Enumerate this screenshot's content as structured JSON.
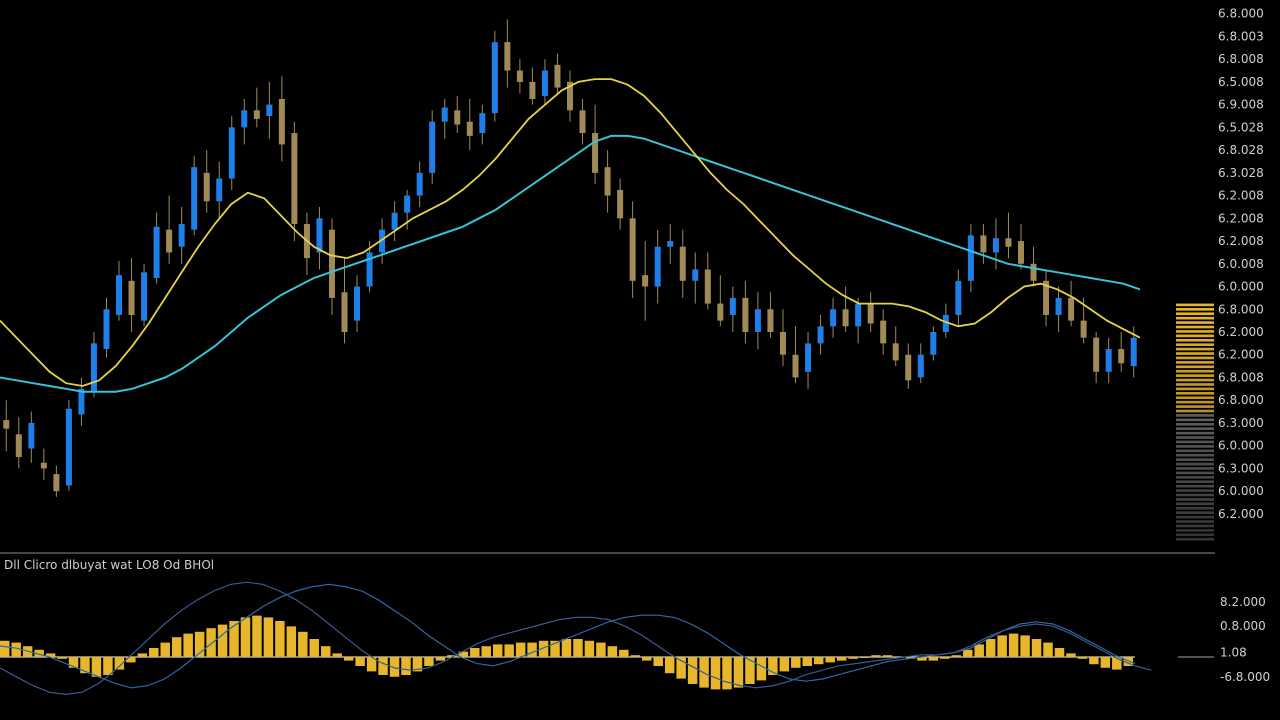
{
  "subpanel_label": "Dll Clicro dlbuyat wat LO8 Od BHOl",
  "colors": {
    "background": "#000000",
    "bull_candle": "#1e7fe8",
    "bear_candle": "#a08a58",
    "ma_fast": "#e6d14a",
    "ma_slow": "#37c3d8",
    "histogram": "#e8b62a",
    "signal_line": "#2a6aa8",
    "macd_line": "#3a5a90",
    "axis_text": "#d0d0d0",
    "separator": "#8a9aa8"
  },
  "chart_data": [
    {
      "type": "candlestick",
      "title": "",
      "ylim": [
        0,
        19
      ],
      "price_ticks": [
        "6.8.000",
        "6.8.003",
        "6.8.008",
        "6.5.008",
        "6.9.008",
        "6.5.028",
        "6.8.028",
        "6.3.028",
        "6.2.008",
        "6.2.008",
        "6.2.008",
        "6.0.008",
        "6.0.000",
        "6.8.000",
        "6.2.000",
        "6.2.000",
        "6.8.008",
        "6.8.000",
        "6.3.000",
        "6.0.000",
        "6.3.000",
        "6.0.000",
        "6.2.000"
      ],
      "bands": {
        "price_tick_values": [
          18.8,
          18.0,
          17.2,
          16.4,
          15.6,
          14.8,
          14.0,
          13.2,
          12.4,
          11.6,
          10.8,
          10.0,
          9.2,
          8.4,
          7.6,
          6.8,
          6.0,
          5.2,
          4.4,
          3.6,
          2.8,
          2.0,
          1.2
        ]
      },
      "candles": [
        {
          "o": 4.5,
          "h": 5.2,
          "l": 3.4,
          "c": 4.2
        },
        {
          "o": 4.0,
          "h": 4.6,
          "l": 2.8,
          "c": 3.2
        },
        {
          "o": 3.5,
          "h": 4.8,
          "l": 3.0,
          "c": 4.4
        },
        {
          "o": 3.0,
          "h": 3.5,
          "l": 2.4,
          "c": 2.8
        },
        {
          "o": 2.6,
          "h": 2.9,
          "l": 1.8,
          "c": 2.0
        },
        {
          "o": 2.2,
          "h": 5.2,
          "l": 2.0,
          "c": 4.9
        },
        {
          "o": 4.7,
          "h": 6.0,
          "l": 4.3,
          "c": 5.6
        },
        {
          "o": 5.5,
          "h": 7.6,
          "l": 5.3,
          "c": 7.2
        },
        {
          "o": 7.0,
          "h": 8.8,
          "l": 6.7,
          "c": 8.4
        },
        {
          "o": 8.2,
          "h": 10.1,
          "l": 8.0,
          "c": 9.6
        },
        {
          "o": 9.4,
          "h": 10.2,
          "l": 7.6,
          "c": 8.2
        },
        {
          "o": 8.0,
          "h": 10.0,
          "l": 7.8,
          "c": 9.7
        },
        {
          "o": 9.5,
          "h": 11.8,
          "l": 9.3,
          "c": 11.3
        },
        {
          "o": 11.2,
          "h": 12.4,
          "l": 10.0,
          "c": 10.4
        },
        {
          "o": 10.6,
          "h": 12.0,
          "l": 10.0,
          "c": 11.4
        },
        {
          "o": 11.2,
          "h": 13.8,
          "l": 11.0,
          "c": 13.4
        },
        {
          "o": 13.2,
          "h": 14.0,
          "l": 11.8,
          "c": 12.2
        },
        {
          "o": 12.2,
          "h": 13.6,
          "l": 11.6,
          "c": 13.0
        },
        {
          "o": 13.0,
          "h": 15.2,
          "l": 12.6,
          "c": 14.8
        },
        {
          "o": 14.8,
          "h": 15.8,
          "l": 14.2,
          "c": 15.4
        },
        {
          "o": 15.4,
          "h": 16.2,
          "l": 14.8,
          "c": 15.1
        },
        {
          "o": 15.2,
          "h": 16.4,
          "l": 14.4,
          "c": 15.6
        },
        {
          "o": 15.8,
          "h": 16.6,
          "l": 13.6,
          "c": 14.2
        },
        {
          "o": 14.6,
          "h": 15.0,
          "l": 10.8,
          "c": 11.4
        },
        {
          "o": 11.4,
          "h": 11.8,
          "l": 9.6,
          "c": 10.2
        },
        {
          "o": 10.4,
          "h": 12.0,
          "l": 9.8,
          "c": 11.6
        },
        {
          "o": 11.2,
          "h": 11.6,
          "l": 8.2,
          "c": 8.8
        },
        {
          "o": 9.0,
          "h": 10.2,
          "l": 7.2,
          "c": 7.6
        },
        {
          "o": 8.0,
          "h": 9.6,
          "l": 7.6,
          "c": 9.2
        },
        {
          "o": 9.2,
          "h": 10.8,
          "l": 9.0,
          "c": 10.4
        },
        {
          "o": 10.4,
          "h": 11.6,
          "l": 10.0,
          "c": 11.2
        },
        {
          "o": 11.2,
          "h": 12.2,
          "l": 10.8,
          "c": 11.8
        },
        {
          "o": 11.8,
          "h": 12.6,
          "l": 11.2,
          "c": 12.4
        },
        {
          "o": 12.4,
          "h": 13.6,
          "l": 12.0,
          "c": 13.2
        },
        {
          "o": 13.2,
          "h": 15.4,
          "l": 12.8,
          "c": 15.0
        },
        {
          "o": 15.0,
          "h": 15.8,
          "l": 14.4,
          "c": 15.5
        },
        {
          "o": 15.4,
          "h": 15.9,
          "l": 14.6,
          "c": 14.9
        },
        {
          "o": 15.0,
          "h": 15.8,
          "l": 14.0,
          "c": 14.5
        },
        {
          "o": 14.6,
          "h": 15.6,
          "l": 14.2,
          "c": 15.3
        },
        {
          "o": 15.3,
          "h": 18.2,
          "l": 15.0,
          "c": 17.8
        },
        {
          "o": 17.8,
          "h": 18.6,
          "l": 16.2,
          "c": 16.8
        },
        {
          "o": 16.8,
          "h": 17.2,
          "l": 16.0,
          "c": 16.4
        },
        {
          "o": 16.4,
          "h": 16.9,
          "l": 15.6,
          "c": 15.8
        },
        {
          "o": 15.9,
          "h": 17.2,
          "l": 15.6,
          "c": 16.8
        },
        {
          "o": 17.0,
          "h": 17.4,
          "l": 16.0,
          "c": 16.2
        },
        {
          "o": 16.4,
          "h": 16.8,
          "l": 15.0,
          "c": 15.4
        },
        {
          "o": 15.4,
          "h": 15.8,
          "l": 14.2,
          "c": 14.6
        },
        {
          "o": 14.6,
          "h": 15.6,
          "l": 12.8,
          "c": 13.2
        },
        {
          "o": 13.4,
          "h": 14.0,
          "l": 11.8,
          "c": 12.4
        },
        {
          "o": 12.6,
          "h": 13.0,
          "l": 11.2,
          "c": 11.6
        },
        {
          "o": 11.6,
          "h": 12.2,
          "l": 8.8,
          "c": 9.4
        },
        {
          "o": 9.6,
          "h": 10.8,
          "l": 8.0,
          "c": 9.2
        },
        {
          "o": 9.2,
          "h": 11.2,
          "l": 8.6,
          "c": 10.6
        },
        {
          "o": 10.6,
          "h": 11.4,
          "l": 10.0,
          "c": 10.8
        },
        {
          "o": 10.6,
          "h": 11.2,
          "l": 8.8,
          "c": 9.4
        },
        {
          "o": 9.4,
          "h": 10.4,
          "l": 8.6,
          "c": 9.8
        },
        {
          "o": 9.8,
          "h": 10.4,
          "l": 8.4,
          "c": 8.6
        },
        {
          "o": 8.6,
          "h": 9.6,
          "l": 7.8,
          "c": 8.0
        },
        {
          "o": 8.2,
          "h": 9.2,
          "l": 7.6,
          "c": 8.8
        },
        {
          "o": 8.8,
          "h": 9.4,
          "l": 7.2,
          "c": 7.6
        },
        {
          "o": 7.6,
          "h": 9.0,
          "l": 7.0,
          "c": 8.4
        },
        {
          "o": 8.4,
          "h": 9.0,
          "l": 7.4,
          "c": 7.6
        },
        {
          "o": 7.6,
          "h": 8.4,
          "l": 6.4,
          "c": 6.8
        },
        {
          "o": 6.8,
          "h": 7.8,
          "l": 5.8,
          "c": 6.0
        },
        {
          "o": 6.2,
          "h": 7.6,
          "l": 5.6,
          "c": 7.2
        },
        {
          "o": 7.2,
          "h": 8.2,
          "l": 6.8,
          "c": 7.8
        },
        {
          "o": 7.8,
          "h": 8.8,
          "l": 7.4,
          "c": 8.4
        },
        {
          "o": 8.4,
          "h": 9.2,
          "l": 7.6,
          "c": 7.8
        },
        {
          "o": 7.8,
          "h": 8.8,
          "l": 7.2,
          "c": 8.6
        },
        {
          "o": 8.6,
          "h": 9.0,
          "l": 7.6,
          "c": 7.9
        },
        {
          "o": 8.0,
          "h": 8.4,
          "l": 6.8,
          "c": 7.2
        },
        {
          "o": 7.2,
          "h": 7.8,
          "l": 6.4,
          "c": 6.6
        },
        {
          "o": 6.8,
          "h": 7.2,
          "l": 5.6,
          "c": 5.9
        },
        {
          "o": 6.0,
          "h": 7.2,
          "l": 5.8,
          "c": 6.8
        },
        {
          "o": 6.8,
          "h": 7.8,
          "l": 6.6,
          "c": 7.6
        },
        {
          "o": 7.6,
          "h": 8.6,
          "l": 7.4,
          "c": 8.2
        },
        {
          "o": 8.2,
          "h": 9.8,
          "l": 7.8,
          "c": 9.4
        },
        {
          "o": 9.4,
          "h": 11.4,
          "l": 9.0,
          "c": 11.0
        },
        {
          "o": 11.0,
          "h": 11.4,
          "l": 10.0,
          "c": 10.4
        },
        {
          "o": 10.4,
          "h": 11.6,
          "l": 9.8,
          "c": 10.9
        },
        {
          "o": 10.9,
          "h": 11.8,
          "l": 10.2,
          "c": 10.6
        },
        {
          "o": 10.8,
          "h": 11.4,
          "l": 9.8,
          "c": 10.0
        },
        {
          "o": 10.0,
          "h": 10.6,
          "l": 9.2,
          "c": 9.4
        },
        {
          "o": 9.4,
          "h": 9.8,
          "l": 7.8,
          "c": 8.2
        },
        {
          "o": 8.2,
          "h": 9.2,
          "l": 7.6,
          "c": 8.8
        },
        {
          "o": 8.8,
          "h": 9.4,
          "l": 7.8,
          "c": 8.0
        },
        {
          "o": 8.0,
          "h": 8.8,
          "l": 7.2,
          "c": 7.4
        },
        {
          "o": 7.4,
          "h": 7.6,
          "l": 5.8,
          "c": 6.2
        },
        {
          "o": 6.2,
          "h": 7.4,
          "l": 5.8,
          "c": 7.0
        },
        {
          "o": 7.0,
          "h": 7.6,
          "l": 6.2,
          "c": 6.5
        },
        {
          "o": 6.4,
          "h": 7.8,
          "l": 6.0,
          "c": 7.4
        }
      ],
      "ma_fast": [
        8.0,
        7.4,
        6.8,
        6.2,
        5.8,
        5.7,
        5.9,
        6.4,
        7.1,
        7.9,
        8.8,
        9.7,
        10.6,
        11.4,
        12.1,
        12.5,
        12.3,
        11.7,
        11.1,
        10.6,
        10.3,
        10.2,
        10.4,
        10.8,
        11.2,
        11.6,
        11.9,
        12.2,
        12.6,
        13.1,
        13.7,
        14.4,
        15.1,
        15.6,
        16.1,
        16.4,
        16.5,
        16.5,
        16.3,
        15.9,
        15.3,
        14.6,
        13.9,
        13.2,
        12.6,
        12.1,
        11.5,
        10.9,
        10.3,
        9.8,
        9.3,
        8.9,
        8.6,
        8.6,
        8.6,
        8.5,
        8.3,
        8.0,
        7.8,
        7.9,
        8.3,
        8.8,
        9.2,
        9.3,
        9.1,
        8.8,
        8.4,
        8.0,
        7.7,
        7.4
      ],
      "ma_slow": [
        6.0,
        5.9,
        5.8,
        5.7,
        5.6,
        5.5,
        5.5,
        5.5,
        5.6,
        5.8,
        6.0,
        6.3,
        6.7,
        7.1,
        7.6,
        8.1,
        8.5,
        8.9,
        9.2,
        9.5,
        9.7,
        9.9,
        10.1,
        10.3,
        10.5,
        10.7,
        10.9,
        11.1,
        11.3,
        11.6,
        11.9,
        12.3,
        12.7,
        13.1,
        13.5,
        13.9,
        14.3,
        14.5,
        14.5,
        14.4,
        14.2,
        14.0,
        13.8,
        13.6,
        13.4,
        13.2,
        13.0,
        12.8,
        12.6,
        12.4,
        12.2,
        12.0,
        11.8,
        11.6,
        11.4,
        11.2,
        11.0,
        10.8,
        10.6,
        10.4,
        10.2,
        10.0,
        9.9,
        9.8,
        9.7,
        9.6,
        9.5,
        9.4,
        9.3,
        9.1
      ],
      "volume_profile": [
        0.9,
        0.85,
        0.8,
        0.75,
        0.7,
        0.65,
        0.6,
        0.55,
        0.5,
        0.45,
        0.4,
        0.35,
        0.3,
        0.25,
        0.2,
        0.15,
        0.1,
        0.05
      ]
    },
    {
      "type": "macd",
      "title": "Dll Clicro dlbuyat wat LO8 Od BHOl",
      "ylim": [
        -2,
        3
      ],
      "ticks": [
        {
          "label": "8.2.000",
          "v": 2.5
        },
        {
          "label": "0.8.000",
          "v": 1.4
        },
        {
          "label": "1.08",
          "v": 0.2
        },
        {
          "label": "-6.8.000",
          "v": -0.9
        }
      ],
      "histogram": [
        0.9,
        0.8,
        0.6,
        0.4,
        0.2,
        -0.1,
        -0.6,
        -0.9,
        -1.1,
        -1.0,
        -0.7,
        -0.3,
        0.2,
        0.5,
        0.8,
        1.1,
        1.3,
        1.4,
        1.6,
        1.8,
        2.0,
        2.2,
        2.3,
        2.2,
        2.0,
        1.7,
        1.4,
        1.0,
        0.6,
        0.2,
        -0.2,
        -0.5,
        -0.8,
        -1.0,
        -1.1,
        -1.0,
        -0.8,
        -0.5,
        -0.2,
        0.1,
        0.3,
        0.5,
        0.6,
        0.7,
        0.7,
        0.8,
        0.8,
        0.9,
        0.9,
        1.0,
        1.0,
        0.9,
        0.8,
        0.6,
        0.4,
        0.1,
        -0.2,
        -0.5,
        -0.9,
        -1.2,
        -1.5,
        -1.7,
        -1.8,
        -1.8,
        -1.7,
        -1.5,
        -1.3,
        -1.0,
        -0.8,
        -0.6,
        -0.5,
        -0.4,
        -0.3,
        -0.2,
        -0.1,
        0.0,
        0.1,
        0.1,
        0.0,
        -0.1,
        -0.2,
        -0.2,
        -0.1,
        0.1,
        0.4,
        0.7,
        1.0,
        1.2,
        1.3,
        1.2,
        1.0,
        0.8,
        0.5,
        0.2,
        -0.1,
        -0.4,
        -0.6,
        -0.7,
        -0.5
      ],
      "signal_line": [
        0.5,
        0.4,
        0.2,
        0.0,
        -0.3,
        -0.6,
        -0.9,
        -1.2,
        -1.4,
        -1.3,
        -1.0,
        -0.5,
        0.1,
        0.7,
        1.3,
        1.8,
        2.3,
        2.7,
        3.0,
        3.2,
        3.3,
        3.2,
        3.0,
        2.6,
        2.1,
        1.6,
        1.0,
        0.5,
        0.0,
        -0.3,
        -0.4,
        -0.2,
        0.1,
        0.4,
        0.7,
        1.0,
        1.3,
        1.6,
        1.8,
        1.9,
        1.9,
        1.8,
        1.5,
        1.1,
        0.6,
        0.1,
        -0.3,
        -0.7,
        -1.0,
        -1.1,
        -1.0,
        -0.8,
        -0.6,
        -0.4,
        -0.2,
        -0.1,
        0.0,
        0.1,
        0.2,
        0.4,
        0.8,
        1.2,
        1.5,
        1.6,
        1.5,
        1.2,
        0.8,
        0.4,
        0.0,
        -0.3
      ],
      "macd_line": [
        -0.5,
        -0.9,
        -1.3,
        -1.6,
        -1.7,
        -1.6,
        -1.2,
        -0.6,
        0.1,
        0.8,
        1.5,
        2.1,
        2.6,
        3.0,
        3.3,
        3.4,
        3.3,
        3.0,
        2.6,
        2.1,
        1.5,
        0.9,
        0.3,
        -0.2,
        -0.5,
        -0.6,
        -0.5,
        -0.2,
        0.2,
        0.6,
        0.9,
        1.1,
        1.3,
        1.5,
        1.7,
        1.8,
        1.8,
        1.7,
        1.4,
        1.0,
        0.5,
        0.0,
        -0.4,
        -0.8,
        -1.1,
        -1.3,
        -1.4,
        -1.3,
        -1.1,
        -0.8,
        -0.6,
        -0.4,
        -0.3,
        -0.2,
        -0.1,
        0.0,
        0.1,
        0.1,
        0.2,
        0.5,
        0.9,
        1.2,
        1.4,
        1.5,
        1.4,
        1.1,
        0.7,
        0.3,
        -0.1,
        -0.4,
        -0.6
      ]
    }
  ]
}
